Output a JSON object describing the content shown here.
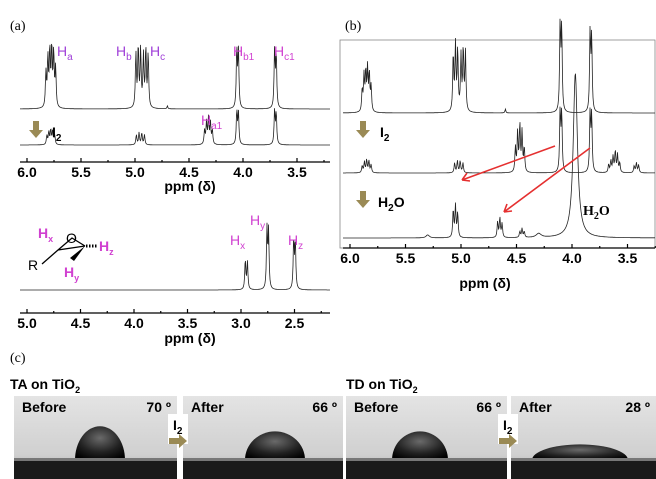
{
  "a": {
    "label": "(a)",
    "top_peaks": [
      {
        "main": "H",
        "sub": "a"
      },
      {
        "main": "H",
        "sub": "b"
      },
      {
        "main": "H",
        "sub": "c"
      },
      {
        "main": "H",
        "sub": "b1"
      },
      {
        "main": "H",
        "sub": "c1"
      },
      {
        "main": "H",
        "sub": "a1"
      }
    ],
    "reagent": {
      "main": "I",
      "sub": "2"
    },
    "ticks_top": [
      "6.0",
      "5.5",
      "5.0",
      "4.5",
      "4.0",
      "3.5"
    ],
    "axis_title_top": "ppm (δ)",
    "molecule": {
      "r": "R",
      "o": "O",
      "hx": {
        "main": "H",
        "sub": "x"
      },
      "hy": {
        "main": "H",
        "sub": "y"
      },
      "hz": {
        "main": "H",
        "sub": "z"
      }
    },
    "bottom_peaks": [
      {
        "main": "H",
        "sub": "x"
      },
      {
        "main": "H",
        "sub": "y"
      },
      {
        "main": "H",
        "sub": "z"
      }
    ],
    "ticks_bottom": [
      "5.0",
      "4.5",
      "4.0",
      "3.5",
      "3.0",
      "2.5"
    ],
    "axis_title_bottom": "ppm (δ)"
  },
  "b": {
    "label": "(b)",
    "reagent1": {
      "main": "I",
      "sub": "2"
    },
    "reagent2": {
      "main": "H",
      "sub": "2",
      "tail": "O"
    },
    "water": {
      "main": "H",
      "sub": "2",
      "tail": "O"
    },
    "ticks": [
      "6.0",
      "5.5",
      "5.0",
      "4.5",
      "4.0",
      "3.5"
    ],
    "axis_title": "ppm (δ)"
  },
  "c": {
    "label": "(c)",
    "groups": [
      {
        "title": {
          "main": "TA on TiO",
          "sub": "2"
        },
        "reagent": {
          "main": "I",
          "sub": "2"
        },
        "before": {
          "label": "Before",
          "angle": "70 º"
        },
        "after": {
          "label": "After",
          "angle": "66 º"
        }
      },
      {
        "title": {
          "main": "TD on TiO",
          "sub": "2"
        },
        "reagent": {
          "main": "I",
          "sub": "2"
        },
        "before": {
          "label": "Before",
          "angle": "66 º"
        },
        "after": {
          "label": "After",
          "angle": "28 º"
        }
      }
    ]
  }
}
